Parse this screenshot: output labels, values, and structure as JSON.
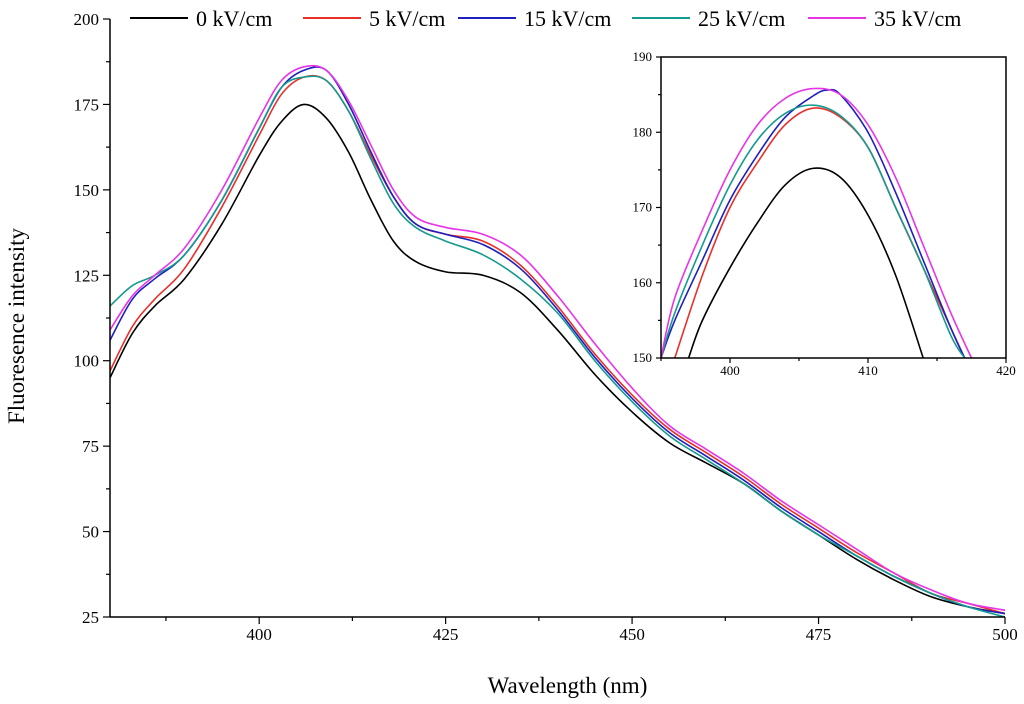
{
  "chart_data": [
    {
      "type": "line",
      "xlabel": "Wavelength (nm)",
      "ylabel": "Fluoresence intensity",
      "xlim": [
        380,
        500
      ],
      "ylim": [
        25,
        200
      ],
      "xticks": [
        400,
        425,
        450,
        475,
        500
      ],
      "yticks": [
        25,
        50,
        75,
        100,
        125,
        150,
        175,
        200
      ],
      "legend_position": "top",
      "series": [
        {
          "name": "0 kV/cm",
          "color": "#000000",
          "x": [
            380,
            383,
            386,
            390,
            395,
            400,
            403,
            406,
            409,
            412,
            415,
            418,
            421,
            425,
            430,
            435,
            440,
            445,
            450,
            455,
            460,
            465,
            470,
            475,
            480,
            485,
            490,
            495,
            500
          ],
          "y": [
            95,
            108,
            116,
            124,
            140,
            160,
            170,
            175,
            171,
            161,
            147,
            135,
            129,
            126,
            125,
            120,
            109,
            96,
            85,
            76,
            70,
            64,
            56,
            49,
            42,
            36,
            31,
            28,
            26
          ]
        },
        {
          "name": "5 kV/cm",
          "color": "#e8302a",
          "x": [
            380,
            383,
            386,
            390,
            395,
            400,
            403,
            406,
            409,
            412,
            415,
            418,
            421,
            425,
            430,
            435,
            440,
            445,
            450,
            455,
            460,
            465,
            470,
            475,
            480,
            485,
            490,
            495,
            500
          ],
          "y": [
            97,
            110,
            118,
            127,
            145,
            166,
            178,
            183,
            182,
            173,
            160,
            148,
            140,
            137,
            135,
            128,
            116,
            102,
            90,
            80,
            73,
            66,
            58,
            51,
            44,
            38,
            32,
            29,
            26
          ]
        },
        {
          "name": "15 kV/cm",
          "color": "#1f1fbf",
          "x": [
            380,
            383,
            386,
            390,
            395,
            400,
            403,
            406,
            409,
            412,
            415,
            418,
            421,
            425,
            430,
            435,
            440,
            445,
            450,
            455,
            460,
            465,
            470,
            475,
            480,
            485,
            490,
            495,
            500
          ],
          "y": [
            106,
            118,
            124,
            131,
            147,
            168,
            180,
            185,
            185,
            175,
            161,
            148,
            140,
            137,
            134,
            127,
            115,
            101,
            89,
            79,
            72,
            65,
            57,
            50,
            43,
            37,
            32,
            28,
            26
          ]
        },
        {
          "name": "25 kV/cm",
          "color": "#149a8e",
          "x": [
            380,
            383,
            386,
            390,
            395,
            400,
            403,
            406,
            409,
            412,
            415,
            418,
            421,
            425,
            430,
            435,
            440,
            445,
            450,
            455,
            460,
            465,
            470,
            475,
            480,
            485,
            490,
            495,
            500
          ],
          "y": [
            116,
            122,
            125,
            131,
            147,
            168,
            180,
            183,
            182,
            173,
            159,
            146,
            139,
            135,
            131,
            124,
            114,
            100,
            88,
            78,
            71,
            64,
            56,
            49,
            43,
            37,
            32,
            28,
            25
          ]
        },
        {
          "name": "35 kV/cm",
          "color": "#e834e8",
          "x": [
            380,
            383,
            386,
            390,
            395,
            400,
            403,
            406,
            409,
            412,
            415,
            418,
            421,
            425,
            430,
            435,
            440,
            445,
            450,
            455,
            460,
            465,
            470,
            475,
            480,
            485,
            490,
            495,
            500
          ],
          "y": [
            109,
            119,
            125,
            133,
            150,
            171,
            182,
            186,
            185,
            176,
            163,
            150,
            142,
            139,
            137,
            131,
            119,
            105,
            92,
            81,
            74,
            67,
            59,
            52,
            45,
            38,
            33,
            29,
            27
          ]
        }
      ]
    },
    {
      "type": "line",
      "xlim": [
        395,
        420
      ],
      "ylim": [
        150,
        190
      ],
      "xticks": [
        400,
        410,
        420
      ],
      "yticks": [
        150,
        160,
        170,
        180,
        190
      ],
      "series": [
        {
          "name": "0 kV/cm",
          "color": "#000000",
          "x": [
            397,
            398,
            400,
            402,
            404,
            406,
            408,
            410,
            412,
            414
          ],
          "y": [
            150,
            155,
            162,
            168,
            173,
            175.2,
            174,
            169,
            161,
            150
          ]
        },
        {
          "name": "5 kV/cm",
          "color": "#e8302a",
          "x": [
            396,
            398,
            400,
            402,
            404,
            406,
            408,
            410,
            412,
            414,
            416,
            417
          ],
          "y": [
            150,
            161,
            170,
            176,
            181,
            183.2,
            182,
            178,
            170,
            162,
            154,
            150
          ]
        },
        {
          "name": "15 kV/cm",
          "color": "#1f1fbf",
          "x": [
            395,
            396,
            398,
            400,
            402,
            404,
            406,
            407,
            408,
            410,
            412,
            414,
            416,
            417
          ],
          "y": [
            150,
            155,
            163,
            171,
            177,
            182,
            184.8,
            185.6,
            185,
            180,
            172,
            163,
            154,
            150
          ]
        },
        {
          "name": "25 kV/cm",
          "color": "#149a8e",
          "x": [
            395,
            396,
            398,
            400,
            402,
            404,
            406,
            408,
            410,
            412,
            414,
            416,
            417
          ],
          "y": [
            150,
            156,
            165,
            173,
            179,
            182.5,
            183.6,
            182.2,
            178,
            170,
            162,
            153,
            150
          ]
        },
        {
          "name": "35 kV/cm",
          "color": "#e834e8",
          "x": [
            395,
            396,
            398,
            400,
            402,
            404,
            406,
            408,
            410,
            412,
            414,
            416,
            417.5
          ],
          "y": [
            150,
            158,
            167,
            175,
            181,
            184.5,
            185.8,
            185,
            181,
            174,
            165,
            156,
            150
          ]
        }
      ]
    }
  ]
}
